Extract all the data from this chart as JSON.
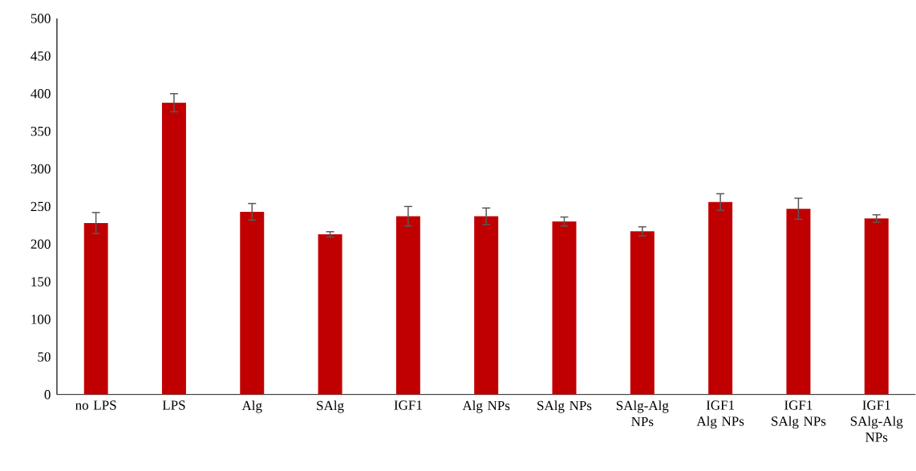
{
  "chart_data": {
    "type": "bar",
    "categories": [
      "no LPS",
      "LPS",
      "Alg",
      "SAlg",
      "IGF1",
      "Alg NPs",
      "SAlg NPs",
      "SAlg-Alg NPs",
      "IGF1 Alg NPs",
      "IGF1 SAlg NPs",
      "IGF1 SAlg-Alg NPs"
    ],
    "values": [
      228,
      388,
      243,
      213,
      237,
      237,
      230,
      217,
      256,
      247,
      234
    ],
    "errors": [
      14,
      12,
      11,
      3.5,
      13,
      11,
      6,
      6,
      11,
      14,
      5
    ],
    "color": "#c00000",
    "ylim": [
      0,
      500
    ],
    "yticks": [
      0,
      50,
      100,
      150,
      200,
      250,
      300,
      350,
      400,
      450,
      500
    ],
    "grid": false
  }
}
